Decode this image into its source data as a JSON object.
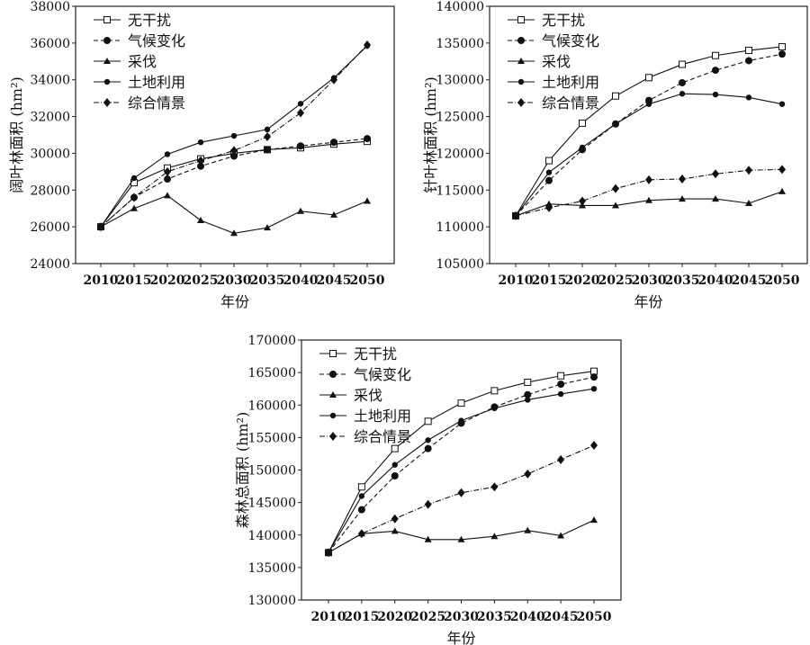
{
  "chart_data": [
    {
      "type": "line",
      "title": "",
      "xlabel": "年份",
      "ylabel": "阔叶林面积 (hm²)",
      "ylim": [
        24000,
        38000
      ],
      "yticks": [
        24000,
        26000,
        28000,
        30000,
        32000,
        34000,
        36000,
        38000
      ],
      "x": [
        2010,
        2015,
        2020,
        2025,
        2030,
        2035,
        2040,
        2045,
        2050
      ],
      "legend": "top-left",
      "series": [
        {
          "name": "无干扰",
          "marker": "square-open",
          "dash": "solid",
          "values": [
            26000,
            28400,
            29200,
            29700,
            30000,
            30200,
            30300,
            30500,
            30650
          ]
        },
        {
          "name": "气候变化",
          "marker": "circle",
          "dash": "dashed",
          "values": [
            26000,
            27600,
            28600,
            29300,
            29850,
            30200,
            30400,
            30600,
            30800
          ]
        },
        {
          "name": "采伐",
          "marker": "triangle",
          "dash": "solid",
          "values": [
            26000,
            27000,
            27700,
            26350,
            25650,
            25950,
            26850,
            26650,
            27400
          ]
        },
        {
          "name": "土地利用",
          "marker": "dot",
          "dash": "solid",
          "values": [
            26000,
            28650,
            29950,
            30600,
            30950,
            31300,
            32700,
            34100,
            35850
          ]
        },
        {
          "name": "综合情景",
          "marker": "diamond",
          "dash": "dashdot",
          "values": [
            26000,
            27600,
            29000,
            29600,
            30150,
            30900,
            32200,
            34000,
            35900
          ]
        }
      ]
    },
    {
      "type": "line",
      "title": "",
      "xlabel": "年份",
      "ylabel": "针叶林面积 (hm²)",
      "ylim": [
        105000,
        140000
      ],
      "yticks": [
        105000,
        110000,
        115000,
        120000,
        125000,
        130000,
        135000,
        140000
      ],
      "x": [
        2010,
        2015,
        2020,
        2025,
        2030,
        2035,
        2040,
        2045,
        2050
      ],
      "legend": "top-left",
      "series": [
        {
          "name": "无干扰",
          "marker": "square-open",
          "dash": "solid",
          "values": [
            111500,
            119000,
            124100,
            127800,
            130300,
            132100,
            133300,
            134000,
            134500
          ]
        },
        {
          "name": "气候变化",
          "marker": "circle",
          "dash": "dashed",
          "values": [
            111500,
            116300,
            120500,
            124000,
            127200,
            129600,
            131300,
            132600,
            133500
          ]
        },
        {
          "name": "采伐",
          "marker": "triangle",
          "dash": "solid",
          "values": [
            111500,
            113100,
            112900,
            112900,
            113600,
            113800,
            113800,
            113200,
            114800
          ]
        },
        {
          "name": "土地利用",
          "marker": "dot",
          "dash": "solid",
          "values": [
            111500,
            117400,
            120800,
            124000,
            126700,
            128100,
            128000,
            127600,
            126700
          ]
        },
        {
          "name": "综合情景",
          "marker": "diamond",
          "dash": "dashdot",
          "values": [
            111500,
            112600,
            113500,
            115200,
            116400,
            116500,
            117200,
            117700,
            117800
          ]
        }
      ]
    },
    {
      "type": "line",
      "title": "",
      "xlabel": "年份",
      "ylabel": "森林总面积 (hm²)",
      "ylim": [
        130000,
        170000
      ],
      "yticks": [
        130000,
        135000,
        140000,
        145000,
        150000,
        155000,
        160000,
        165000,
        170000
      ],
      "x": [
        2010,
        2015,
        2020,
        2025,
        2030,
        2035,
        2040,
        2045,
        2050
      ],
      "legend": "top-left",
      "series": [
        {
          "name": "无干扰",
          "marker": "square-open",
          "dash": "solid",
          "values": [
            137300,
            147400,
            153300,
            157500,
            160300,
            162200,
            163500,
            164500,
            165200
          ]
        },
        {
          "name": "气候变化",
          "marker": "circle",
          "dash": "dashed",
          "values": [
            137300,
            143900,
            149100,
            153300,
            157200,
            159700,
            161600,
            163200,
            164300
          ]
        },
        {
          "name": "采伐",
          "marker": "triangle",
          "dash": "solid",
          "values": [
            137300,
            140200,
            140600,
            139300,
            139300,
            139800,
            140700,
            139900,
            142300
          ]
        },
        {
          "name": "土地利用",
          "marker": "dot",
          "dash": "solid",
          "values": [
            137300,
            146000,
            150800,
            154600,
            157600,
            159500,
            160800,
            161700,
            162500
          ]
        },
        {
          "name": "综合情景",
          "marker": "diamond",
          "dash": "dashdot",
          "values": [
            137300,
            140200,
            142500,
            144700,
            146500,
            147400,
            149400,
            151600,
            153800
          ]
        }
      ]
    }
  ]
}
